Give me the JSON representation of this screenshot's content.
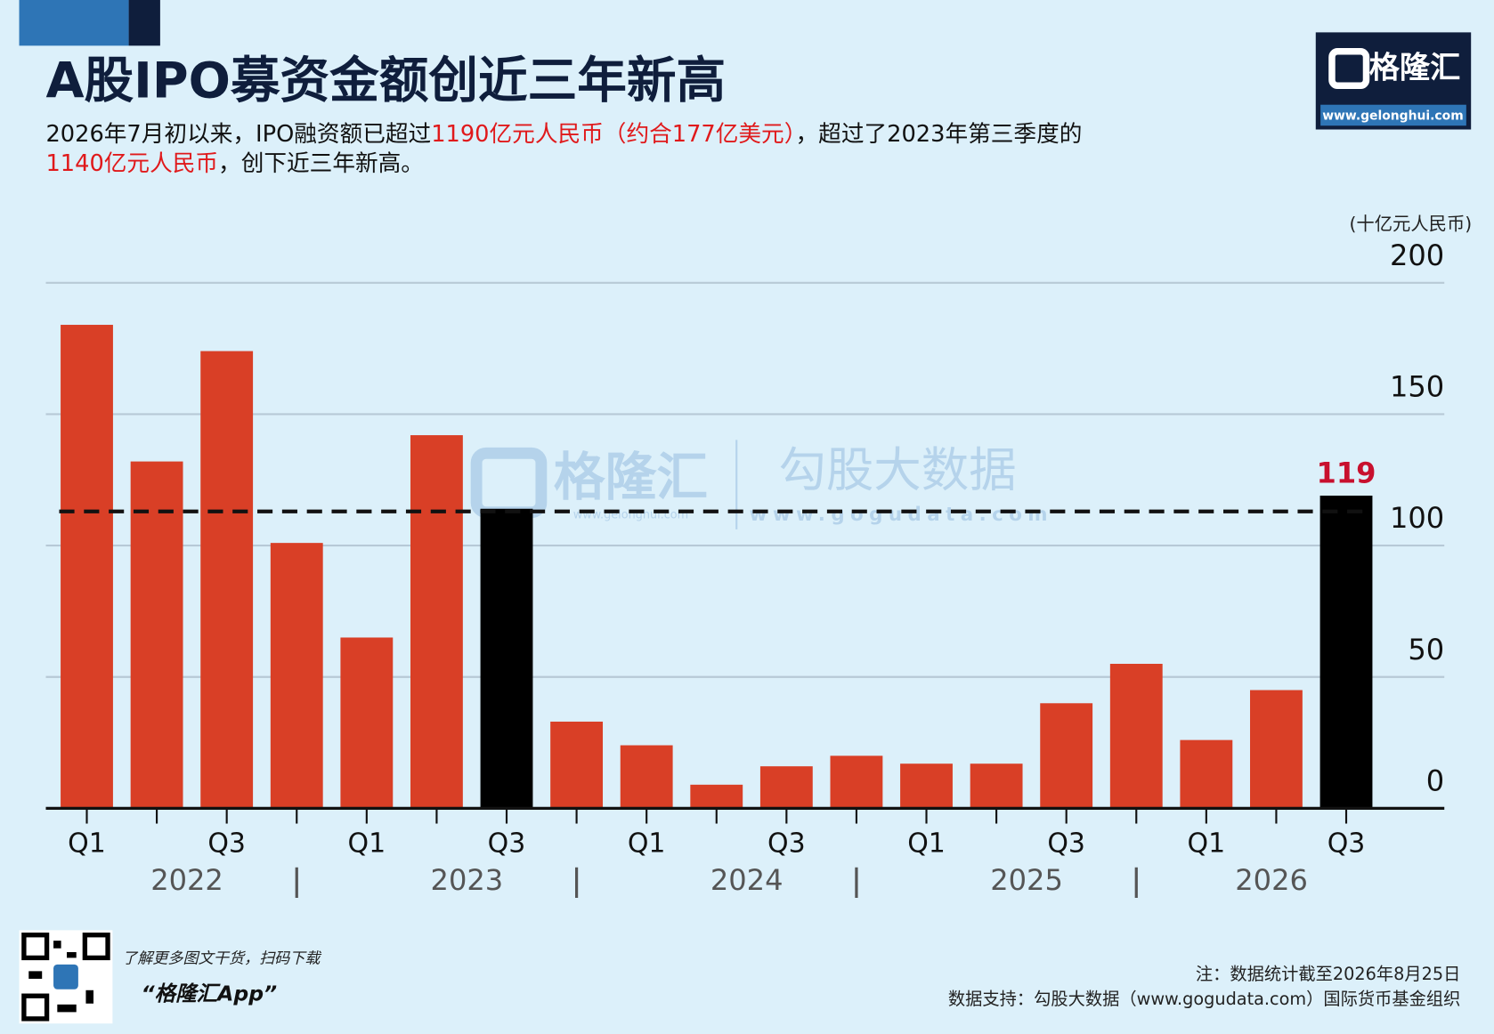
{
  "chart_data": {
    "type": "bar",
    "title": "A股IPO募资金额创近三年新高",
    "subtitle": [
      [
        {
          "text": "2026年7月初以来，IPO融资额已超过",
          "highlight": false
        },
        {
          "text": "1190亿元人民币（约合177亿美元）",
          "highlight": true
        },
        {
          "text": "，超过了2023年第三季度的",
          "highlight": false
        }
      ],
      [
        {
          "text": "1140亿元人民币",
          "highlight": true
        },
        {
          "text": "，创下近三年新高。",
          "highlight": false
        }
      ]
    ],
    "y_label": "(十亿元人民币)",
    "categories": [
      "Q1",
      null,
      "Q3",
      null,
      "Q1",
      null,
      "Q3",
      null,
      "Q1",
      null,
      "Q3",
      null,
      "Q1",
      null,
      "Q3",
      null,
      "Q1",
      null,
      "Q3"
    ],
    "years": [
      "2022",
      "2023",
      "2024",
      "2025",
      "2026"
    ],
    "values": [
      184,
      132,
      174,
      101,
      65,
      142,
      114,
      33,
      24,
      9,
      16,
      20,
      17,
      17,
      40,
      55,
      26,
      45,
      119
    ],
    "colors": [
      "#d93f26",
      "#d93f26",
      "#d93f26",
      "#d93f26",
      "#d93f26",
      "#d93f26",
      "#000000",
      "#d93f26",
      "#d93f26",
      "#d93f26",
      "#d93f26",
      "#d93f26",
      "#d93f26",
      "#d93f26",
      "#d93f26",
      "#d93f26",
      "#d93f26",
      "#d93f26",
      "#000000"
    ],
    "labeled_value": 18,
    "reference_line": 113,
    "ylim": [
      0,
      200
    ],
    "yticks": [
      0,
      50,
      100,
      150,
      200
    ],
    "grid": true,
    "note": "注：数据统计截至2026年8月25日",
    "source": "数据支持：勾股大数据（www.gogudata.com）国际货币基金组织"
  },
  "logo": {
    "name": "格隆汇",
    "url": "www.gelonghui.com"
  },
  "watermark": {
    "brand1": "格隆汇",
    "url1": "www.gelonghui.com",
    "brand2": "勾股大数据",
    "url2": "www.gogudata.com"
  },
  "footer": {
    "promo": "了解更多图文干货，扫码下载",
    "app": "“格隆汇App”"
  }
}
